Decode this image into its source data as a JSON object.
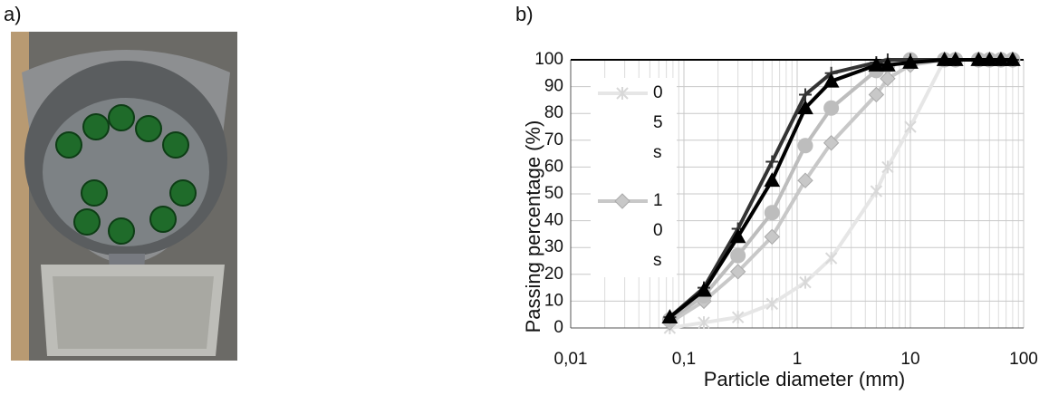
{
  "panel_a_label": "a)",
  "chart_data": {
    "type": "line",
    "panel_label": "b)",
    "y_label": "Passing percentage (%)",
    "x_label": "Particle diameter (mm)",
    "log_x": true,
    "grid": true,
    "xlim": [
      0.01,
      100
    ],
    "xticks": [
      {
        "value": 0.01,
        "label": "0,01"
      },
      {
        "value": 0.1,
        "label": "0,1"
      },
      1,
      10,
      100
    ],
    "ylim": [
      0,
      100
    ],
    "yticks": [
      0,
      10,
      20,
      30,
      40,
      50,
      60,
      70,
      80,
      90,
      100
    ],
    "x": [
      0.075,
      0.15,
      0.3,
      0.6,
      1.18,
      2,
      5,
      6.3,
      10,
      20,
      25,
      40,
      50,
      63,
      80
    ],
    "series": [
      {
        "name": "05s",
        "color": "#e6e6e6",
        "marker": "x",
        "values": [
          0,
          2,
          4,
          9,
          17,
          26,
          51,
          60,
          75,
          100,
          100,
          100,
          100,
          100,
          100
        ]
      },
      {
        "name": "10s",
        "color": "#c8c8c8",
        "marker": "diamond",
        "values": [
          2,
          10,
          21,
          34,
          55,
          69,
          87,
          93,
          98,
          100,
          100,
          100,
          100,
          100,
          100
        ]
      },
      {
        "color": "#bdbdbd",
        "marker": "circle",
        "values": [
          3,
          12,
          27,
          43,
          68,
          82,
          96,
          98,
          100,
          100,
          100,
          100,
          100,
          100,
          100
        ]
      },
      {
        "color": "#333333",
        "marker": "plus",
        "values": [
          4,
          15,
          37,
          62,
          87,
          95,
          99,
          100,
          100,
          100,
          100,
          100,
          100,
          100,
          100
        ]
      },
      {
        "color": "#000000",
        "marker": "triangle",
        "values": [
          4,
          14,
          34,
          55,
          82,
          92,
          98,
          98,
          99,
          100,
          100,
          100,
          100,
          100,
          100
        ]
      }
    ]
  }
}
